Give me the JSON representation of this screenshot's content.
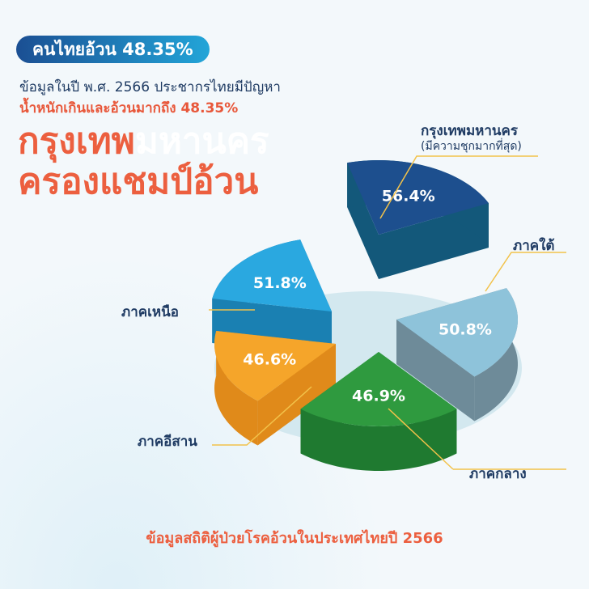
{
  "badge": "คนไทยอ้วน 48.35%",
  "subtitle_line1": "ข้อมูลในปี พ.ศ. 2566 ประชากรไทยมีปัญหา",
  "subtitle_line2": "น้ำหนักเกินและอ้วนมากถึง 48.35%",
  "title_part1": "กรุงเทพ",
  "title_part1_white": "มหานคร",
  "title_line2": "ครองแชมป์อ้วน",
  "footer": "ข้อมูลสถิติผู้ป่วยโรคอ้วนในประเทศไทยปี 2566",
  "chart_data": {
    "type": "pie",
    "style": "3d-exploded",
    "categories": [
      "กรุงเทพมหานคร",
      "ภาคใต้",
      "ภาคกลาง",
      "ภาคอีสาน",
      "ภาคเหนือ"
    ],
    "values": [
      56.4,
      50.8,
      46.9,
      46.6,
      51.8
    ],
    "data_labels": [
      "56.4%",
      "50.8%",
      "46.9%",
      "46.6%",
      "51.8%"
    ],
    "annotation": "(มีความชุกมากที่สุด)",
    "colors": [
      "#1d4f8e",
      "#8ec3da",
      "#2f9a3f",
      "#f5a52a",
      "#2aa8e0"
    ],
    "side_colors": [
      "#13587a",
      "#6e8b99",
      "#1f7a30",
      "#e08a1a",
      "#1a80b2"
    ]
  }
}
